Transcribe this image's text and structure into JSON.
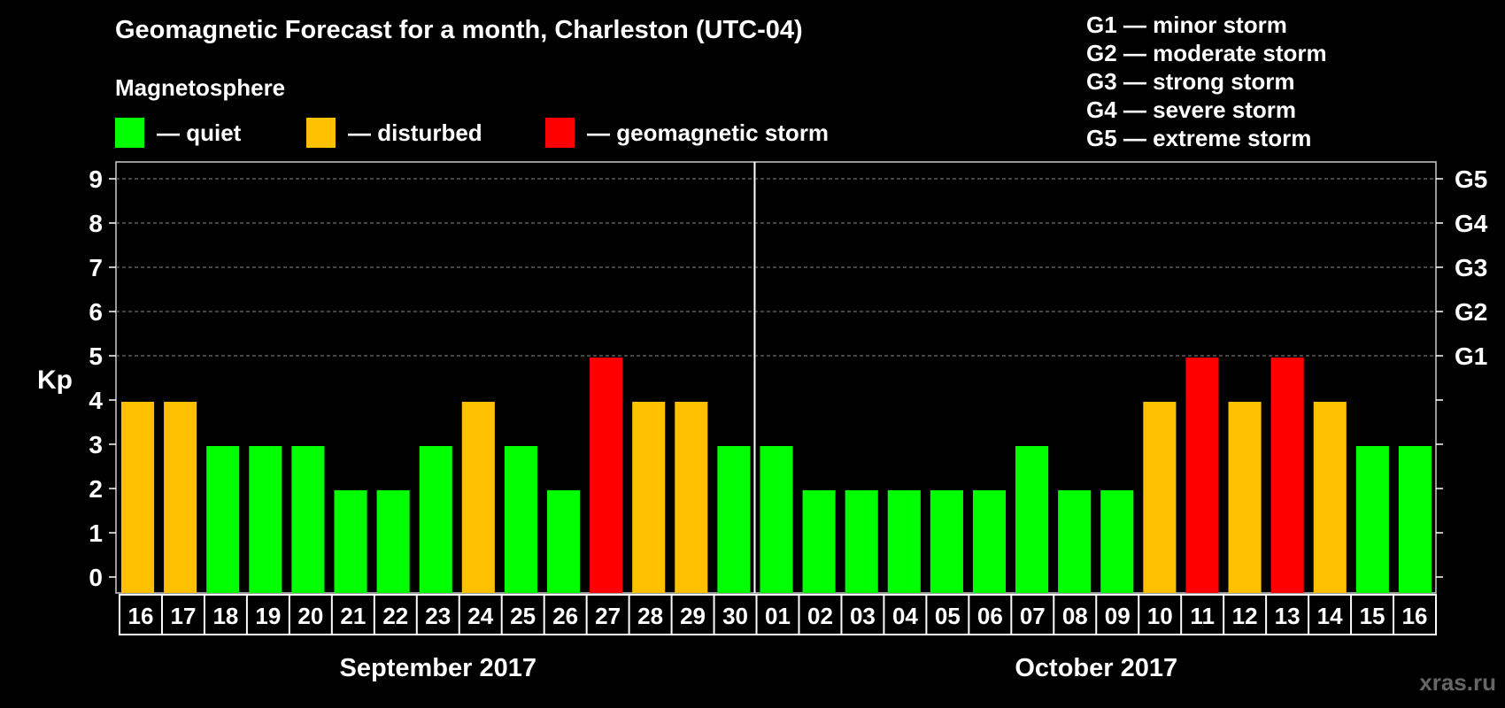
{
  "title": "Geomagnetic Forecast for a month, Charleston (UTC-04)",
  "subtitle": "Magnetosphere",
  "legend": [
    {
      "label": "— quiet",
      "color": "#00ff00"
    },
    {
      "label": "— disturbed",
      "color": "#ffc000"
    },
    {
      "label": "— geomagnetic storm",
      "color": "#ff0000"
    }
  ],
  "storm_scale": [
    "G1 — minor storm",
    "G2 — moderate storm",
    "G3 — strong storm",
    "G4 — severe storm",
    "G5 — extreme storm"
  ],
  "watermark": "xras.ru",
  "chart_data": {
    "type": "bar",
    "ylabel": "Kp",
    "ylim": [
      0,
      9
    ],
    "yticks": [
      0,
      1,
      2,
      3,
      4,
      5,
      6,
      7,
      8,
      9
    ],
    "right_axis_labels": [
      {
        "value": 5,
        "label": "G1"
      },
      {
        "value": 6,
        "label": "G2"
      },
      {
        "value": 7,
        "label": "G3"
      },
      {
        "value": 8,
        "label": "G4"
      },
      {
        "value": 9,
        "label": "G5"
      }
    ],
    "grid": "dashed horizontal at 5-9",
    "categories": [
      "16",
      "17",
      "18",
      "19",
      "20",
      "21",
      "22",
      "23",
      "24",
      "25",
      "26",
      "27",
      "28",
      "29",
      "30",
      "01",
      "02",
      "03",
      "04",
      "05",
      "06",
      "07",
      "08",
      "09",
      "10",
      "11",
      "12",
      "13",
      "14",
      "15",
      "16"
    ],
    "values": [
      4,
      4,
      3,
      3,
      3,
      2,
      2,
      3,
      4,
      3,
      2,
      5,
      4,
      4,
      3,
      3,
      2,
      2,
      2,
      2,
      2,
      3,
      2,
      2,
      4,
      5,
      4,
      5,
      4,
      3,
      3
    ],
    "months": [
      {
        "label": "September 2017",
        "start_index": 0,
        "end_index": 14
      },
      {
        "label": "October 2017",
        "start_index": 15,
        "end_index": 30
      }
    ],
    "color_rule": {
      "quiet_max": 3,
      "disturbed": 4,
      "storm_min": 5
    }
  }
}
